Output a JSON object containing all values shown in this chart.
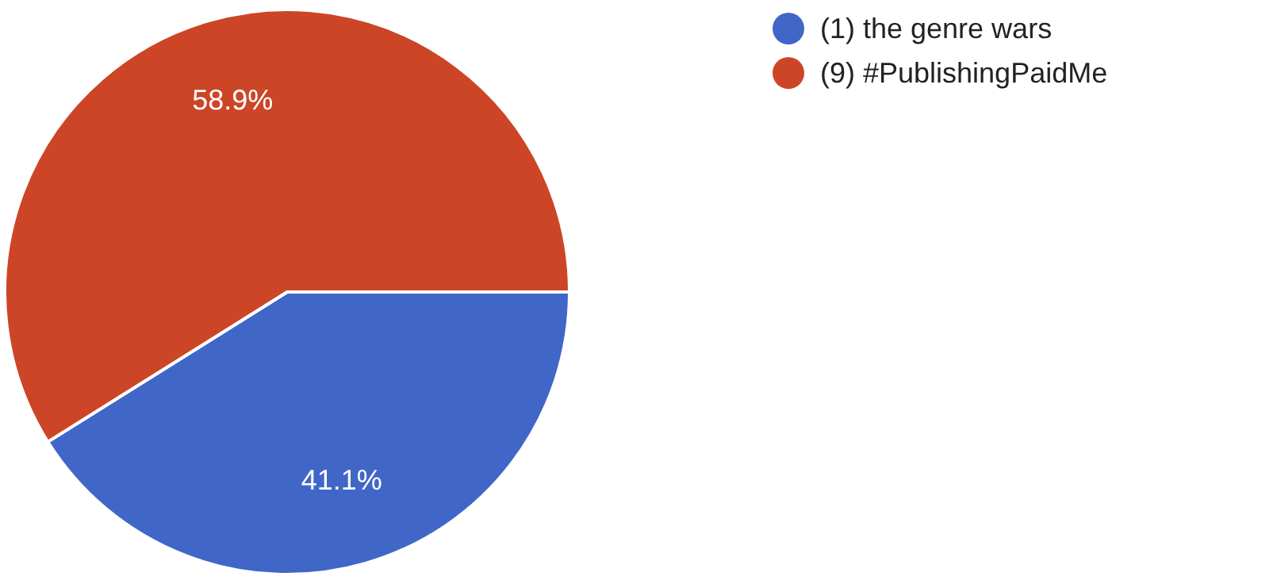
{
  "chart_data": {
    "type": "pie",
    "categories": [
      "(1) the genre wars",
      "(9) #PublishingPaidMe"
    ],
    "values": [
      41.1,
      58.9
    ],
    "colors": [
      "#4067c8",
      "#cc4527"
    ],
    "value_labels": [
      "41.1%",
      "58.9%"
    ],
    "legend": "top right"
  }
}
